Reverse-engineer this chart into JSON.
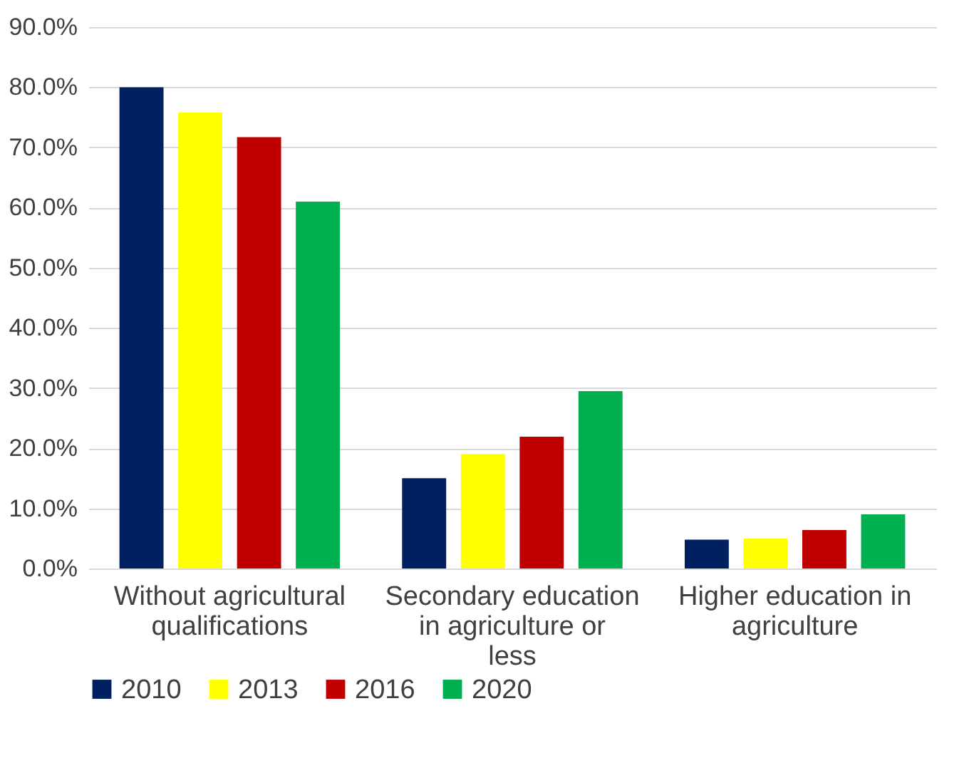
{
  "chart_data": {
    "type": "bar",
    "categories": [
      "Without agricultural qualifications",
      "Secondary education in agriculture or less",
      "Higher education in agriculture"
    ],
    "series": [
      {
        "name": "2010",
        "color": "#002060",
        "values": [
          80.0,
          15.0,
          4.8
        ]
      },
      {
        "name": "2013",
        "color": "#ffff00",
        "values": [
          75.8,
          19.0,
          5.0
        ]
      },
      {
        "name": "2016",
        "color": "#c00000",
        "values": [
          71.7,
          21.9,
          6.4
        ]
      },
      {
        "name": "2020",
        "color": "#00b050",
        "values": [
          61.0,
          29.5,
          9.0
        ]
      }
    ],
    "ylim": [
      0,
      90
    ],
    "yticks": [
      {
        "value": 0,
        "label": "0.0%"
      },
      {
        "value": 10,
        "label": "10.0%"
      },
      {
        "value": 20,
        "label": "20.0%"
      },
      {
        "value": 30,
        "label": "30.0%"
      },
      {
        "value": 40,
        "label": "40.0%"
      },
      {
        "value": 50,
        "label": "50.0%"
      },
      {
        "value": 60,
        "label": "60.0%"
      },
      {
        "value": 70,
        "label": "70.0%"
      },
      {
        "value": 80,
        "label": "80.0%"
      },
      {
        "value": 90,
        "label": "90.0%"
      }
    ],
    "grid": "y",
    "legend": "bottom"
  }
}
